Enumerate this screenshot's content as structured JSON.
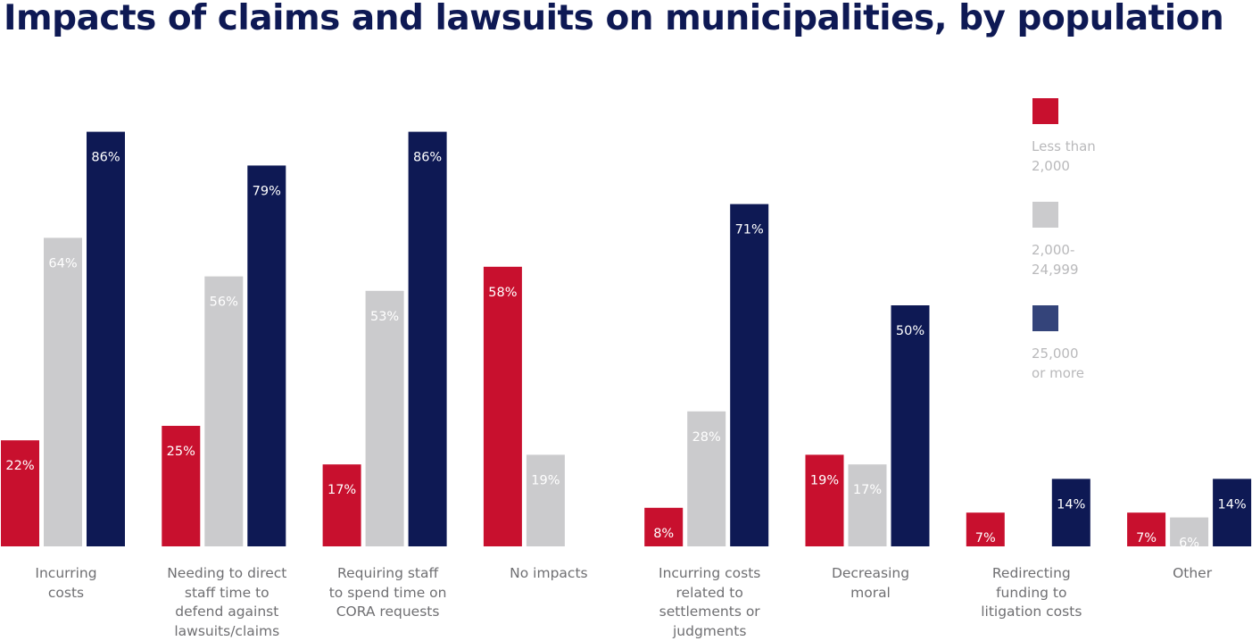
{
  "chart_data": {
    "type": "bar",
    "title": "Impacts of claims and lawsuits on municipalities, by population",
    "categories": [
      "Incurring costs",
      "Needing to direct staff time to defend against lawsuits/claims",
      "Requiring staff to spend time on CORA requests",
      "No impacts",
      "Incurring costs related to settlements or judgments",
      "Decreasing moral",
      "Redirecting funding to litigation costs",
      "Other"
    ],
    "series": [
      {
        "name": "Less than 2,000",
        "color": "#c8102e",
        "values": [
          22,
          25,
          17,
          58,
          8,
          19,
          7,
          7
        ]
      },
      {
        "name": "2,000-24,999",
        "color": "#cbcbcd",
        "legend_color": "#cbcbcd",
        "values": [
          64,
          56,
          53,
          19,
          28,
          17,
          null,
          6
        ]
      },
      {
        "name": "25,000 or more",
        "color": "#0e1954",
        "legend_color": "#34447a",
        "values": [
          86,
          79,
          86,
          null,
          71,
          50,
          14,
          14
        ]
      }
    ],
    "value_suffix": "%",
    "ylim": [
      0,
      100
    ],
    "legend_position": "right",
    "grid": false
  }
}
